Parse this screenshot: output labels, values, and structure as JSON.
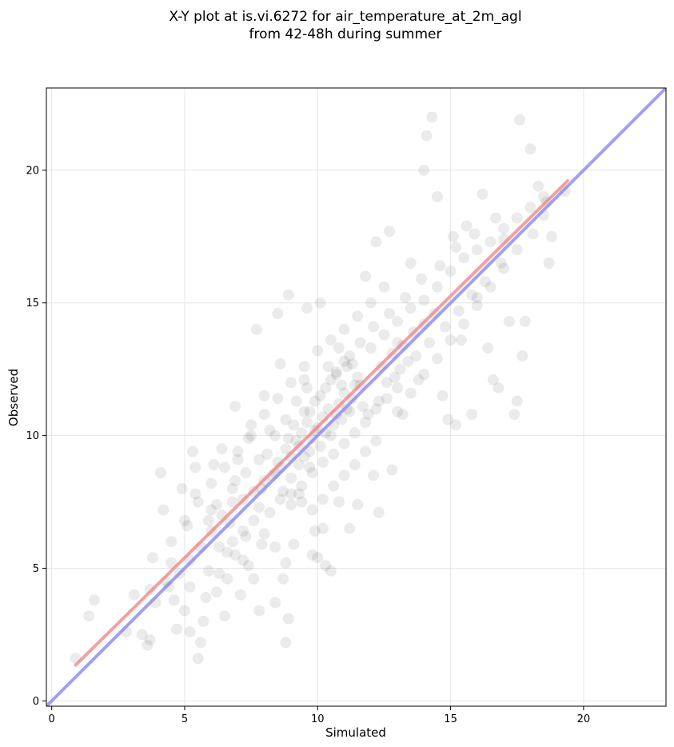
{
  "chart_data": {
    "type": "scatter",
    "title_line1": "X-Y plot at is.vi.6272 for air_temperature_at_2m_agl",
    "title_line2": "from 42-48h during summer",
    "xlabel": "Simulated",
    "ylabel": "Observed",
    "xlim": [
      -0.2,
      23.1
    ],
    "ylim": [
      -0.2,
      23.1
    ],
    "xticks": [
      0,
      5,
      10,
      15,
      20
    ],
    "yticks": [
      0,
      5,
      10,
      15,
      20
    ],
    "xtick_labels": [
      "0",
      "5",
      "10",
      "15",
      "20"
    ],
    "ytick_labels": [
      "0",
      "5",
      "10",
      "15",
      "20"
    ],
    "grid": true,
    "point_color": "#000000",
    "point_alpha": 0.08,
    "regression_line": {
      "color": "#f08080",
      "x": [
        0.9,
        19.4
      ],
      "y": [
        1.35,
        19.6
      ]
    },
    "one_to_one_line": {
      "color": "#8080f0",
      "x": [
        -0.2,
        23.1
      ],
      "y": [
        -0.2,
        23.1
      ]
    },
    "points": [
      [
        0.9,
        1.6
      ],
      [
        1.4,
        3.2
      ],
      [
        1.6,
        3.8
      ],
      [
        2.8,
        2.6
      ],
      [
        3.1,
        4.0
      ],
      [
        3.4,
        2.5
      ],
      [
        3.6,
        2.1
      ],
      [
        3.7,
        2.3
      ],
      [
        3.7,
        4.2
      ],
      [
        3.8,
        5.4
      ],
      [
        3.9,
        3.7
      ],
      [
        4.1,
        8.6
      ],
      [
        4.2,
        7.2
      ],
      [
        4.3,
        4.5
      ],
      [
        4.4,
        4.3
      ],
      [
        4.5,
        5.2
      ],
      [
        4.6,
        3.8
      ],
      [
        4.7,
        2.7
      ],
      [
        4.9,
        8.0
      ],
      [
        5.0,
        3.4
      ],
      [
        5.1,
        6.6
      ],
      [
        5.2,
        2.6
      ],
      [
        5.2,
        4.3
      ],
      [
        5.3,
        9.4
      ],
      [
        5.4,
        7.8
      ],
      [
        5.4,
        8.8
      ],
      [
        5.5,
        1.6
      ],
      [
        5.6,
        2.2
      ],
      [
        5.7,
        3.0
      ],
      [
        5.8,
        3.9
      ],
      [
        5.9,
        4.9
      ],
      [
        5.9,
        6.8
      ],
      [
        6.0,
        7.2
      ],
      [
        6.1,
        8.9
      ],
      [
        6.2,
        4.1
      ],
      [
        6.3,
        5.8
      ],
      [
        6.4,
        9.5
      ],
      [
        6.5,
        3.2
      ],
      [
        6.6,
        4.6
      ],
      [
        6.6,
        5.6
      ],
      [
        6.7,
        6.7
      ],
      [
        6.8,
        7.5
      ],
      [
        6.9,
        8.3
      ],
      [
        6.9,
        11.1
      ],
      [
        7.0,
        9.1
      ],
      [
        7.1,
        4.0
      ],
      [
        7.2,
        5.3
      ],
      [
        7.3,
        6.2
      ],
      [
        7.4,
        9.9
      ],
      [
        7.5,
        10.4
      ],
      [
        7.6,
        4.6
      ],
      [
        7.7,
        14.0
      ],
      [
        7.8,
        3.4
      ],
      [
        7.9,
        8.0
      ],
      [
        8.0,
        11.5
      ],
      [
        8.1,
        9.3
      ],
      [
        8.2,
        10.2
      ],
      [
        8.4,
        3.7
      ],
      [
        8.5,
        14.6
      ],
      [
        8.6,
        12.7
      ],
      [
        8.7,
        4.6
      ],
      [
        8.8,
        2.2
      ],
      [
        8.8,
        5.2
      ],
      [
        8.9,
        3.1
      ],
      [
        8.9,
        15.3
      ],
      [
        9.0,
        7.4
      ],
      [
        9.1,
        5.9
      ],
      [
        9.3,
        7.8
      ],
      [
        9.5,
        12.1
      ],
      [
        9.6,
        14.8
      ],
      [
        9.8,
        5.5
      ],
      [
        9.9,
        6.4
      ],
      [
        10.0,
        5.4
      ],
      [
        10.1,
        15.0
      ],
      [
        10.2,
        6.5
      ],
      [
        10.3,
        5.1
      ],
      [
        10.5,
        4.9
      ],
      [
        10.7,
        12.4
      ],
      [
        10.8,
        7.5
      ],
      [
        11.0,
        12.8
      ],
      [
        11.2,
        6.5
      ],
      [
        11.4,
        11.9
      ],
      [
        11.5,
        7.4
      ],
      [
        11.8,
        16.0
      ],
      [
        12.1,
        8.5
      ],
      [
        12.2,
        17.3
      ],
      [
        12.3,
        7.1
      ],
      [
        12.7,
        17.7
      ],
      [
        12.8,
        8.7
      ],
      [
        13.0,
        13.5
      ],
      [
        13.2,
        10.8
      ],
      [
        13.5,
        16.5
      ],
      [
        13.8,
        12.1
      ],
      [
        14.0,
        20.0
      ],
      [
        14.1,
        21.3
      ],
      [
        14.3,
        22.0
      ],
      [
        14.5,
        19.0
      ],
      [
        14.7,
        11.5
      ],
      [
        14.9,
        10.6
      ],
      [
        15.1,
        17.5
      ],
      [
        15.2,
        10.4
      ],
      [
        15.4,
        13.6
      ],
      [
        15.6,
        17.9
      ],
      [
        15.8,
        10.8
      ],
      [
        16.0,
        15.2
      ],
      [
        16.2,
        19.1
      ],
      [
        16.4,
        13.3
      ],
      [
        16.6,
        12.1
      ],
      [
        16.8,
        11.8
      ],
      [
        17.0,
        17.4
      ],
      [
        17.2,
        14.3
      ],
      [
        17.4,
        10.8
      ],
      [
        17.5,
        11.3
      ],
      [
        17.6,
        21.9
      ],
      [
        17.7,
        13.0
      ],
      [
        17.8,
        14.3
      ],
      [
        18.0,
        20.8
      ],
      [
        18.3,
        19.4
      ],
      [
        18.5,
        18.3
      ],
      [
        18.7,
        16.5
      ],
      [
        18.8,
        17.5
      ],
      [
        19.3,
        19.2
      ],
      [
        9.2,
        9.8
      ],
      [
        9.4,
        10.1
      ],
      [
        9.6,
        10.5
      ],
      [
        9.8,
        9.9
      ],
      [
        10.0,
        10.3
      ],
      [
        10.2,
        10.7
      ],
      [
        10.4,
        11.0
      ],
      [
        10.6,
        10.4
      ],
      [
        10.8,
        11.2
      ],
      [
        11.0,
        11.6
      ],
      [
        11.2,
        10.9
      ],
      [
        9.0,
        9.2
      ],
      [
        9.3,
        8.9
      ],
      [
        9.7,
        9.4
      ],
      [
        10.1,
        9.6
      ],
      [
        10.5,
        10.0
      ],
      [
        10.9,
        10.6
      ],
      [
        11.3,
        11.4
      ],
      [
        11.6,
        11.9
      ],
      [
        8.6,
        8.8
      ],
      [
        8.8,
        9.5
      ],
      [
        9.1,
        10.4
      ],
      [
        9.5,
        10.9
      ],
      [
        9.9,
        11.3
      ],
      [
        10.3,
        11.8
      ],
      [
        10.7,
        12.3
      ],
      [
        11.1,
        12.6
      ],
      [
        11.5,
        12.2
      ],
      [
        8.3,
        8.5
      ],
      [
        8.5,
        9.0
      ],
      [
        8.7,
        7.9
      ],
      [
        9.0,
        8.4
      ],
      [
        9.4,
        8.1
      ],
      [
        9.8,
        8.6
      ],
      [
        10.2,
        9.0
      ],
      [
        10.6,
        9.3
      ],
      [
        11.0,
        9.7
      ],
      [
        11.4,
        10.1
      ],
      [
        11.8,
        10.5
      ],
      [
        12.2,
        11.0
      ],
      [
        12.6,
        11.4
      ],
      [
        13.0,
        11.8
      ],
      [
        12.4,
        12.6
      ],
      [
        12.8,
        13.1
      ],
      [
        13.2,
        13.4
      ],
      [
        13.6,
        13.9
      ],
      [
        14.0,
        14.2
      ],
      [
        14.4,
        14.6
      ],
      [
        12.0,
        13.3
      ],
      [
        12.5,
        13.8
      ],
      [
        13.0,
        14.3
      ],
      [
        13.5,
        14.8
      ],
      [
        14.0,
        15.1
      ],
      [
        14.5,
        15.6
      ],
      [
        15.0,
        16.2
      ],
      [
        15.5,
        16.7
      ],
      [
        16.0,
        17.0
      ],
      [
        16.5,
        17.3
      ],
      [
        17.0,
        17.8
      ],
      [
        17.5,
        18.2
      ],
      [
        18.0,
        18.6
      ],
      [
        18.5,
        19.0
      ],
      [
        11.5,
        14.5
      ],
      [
        12.0,
        15.0
      ],
      [
        12.5,
        15.6
      ],
      [
        11.0,
        14.0
      ],
      [
        10.5,
        13.6
      ],
      [
        10.0,
        13.2
      ],
      [
        9.5,
        12.6
      ],
      [
        9.0,
        12.0
      ],
      [
        8.5,
        11.4
      ],
      [
        8.0,
        10.8
      ],
      [
        7.5,
        10.0
      ],
      [
        7.0,
        9.4
      ],
      [
        6.5,
        8.8
      ],
      [
        6.0,
        8.2
      ],
      [
        5.5,
        7.5
      ],
      [
        5.0,
        6.8
      ],
      [
        4.5,
        6.0
      ],
      [
        13.0,
        10.9
      ],
      [
        13.5,
        11.6
      ],
      [
        14.0,
        12.3
      ],
      [
        14.5,
        12.9
      ],
      [
        15.0,
        13.6
      ],
      [
        15.5,
        14.2
      ],
      [
        16.0,
        14.9
      ],
      [
        16.5,
        15.6
      ],
      [
        17.0,
        16.3
      ],
      [
        7.2,
        7.6
      ],
      [
        7.6,
        7.9
      ],
      [
        8.0,
        8.3
      ],
      [
        8.4,
        8.6
      ],
      [
        7.8,
        7.3
      ],
      [
        8.2,
        7.1
      ],
      [
        8.6,
        7.6
      ],
      [
        9.0,
        7.8
      ],
      [
        9.4,
        7.5
      ],
      [
        9.8,
        7.2
      ],
      [
        10.2,
        7.6
      ],
      [
        10.6,
        8.1
      ],
      [
        11.0,
        8.5
      ],
      [
        11.4,
        8.9
      ],
      [
        11.8,
        9.4
      ],
      [
        12.2,
        9.8
      ],
      [
        6.8,
        6.0
      ],
      [
        7.2,
        6.4
      ],
      [
        7.6,
        6.8
      ],
      [
        8.0,
        6.3
      ],
      [
        8.4,
        5.8
      ],
      [
        6.4,
        7.0
      ],
      [
        6.0,
        6.4
      ],
      [
        5.6,
        5.8
      ],
      [
        5.2,
        5.3
      ],
      [
        4.8,
        4.8
      ],
      [
        6.3,
        4.8
      ],
      [
        6.9,
        5.5
      ],
      [
        7.4,
        5.1
      ],
      [
        7.9,
        5.9
      ],
      [
        11.2,
        13.0
      ],
      [
        11.6,
        13.5
      ],
      [
        12.1,
        14.1
      ],
      [
        12.7,
        14.6
      ],
      [
        13.3,
        15.2
      ],
      [
        13.9,
        15.9
      ],
      [
        14.6,
        16.4
      ],
      [
        15.2,
        17.1
      ],
      [
        15.9,
        17.6
      ],
      [
        16.7,
        18.2
      ],
      [
        10.4,
        12.6
      ],
      [
        10.8,
        13.3
      ],
      [
        9.6,
        11.8
      ],
      [
        9.2,
        11.3
      ],
      [
        8.8,
        10.6
      ],
      [
        8.4,
        10.0
      ],
      [
        7.8,
        9.1
      ],
      [
        7.3,
        8.6
      ],
      [
        6.8,
        8.0
      ],
      [
        6.2,
        7.4
      ],
      [
        12.6,
        12.0
      ],
      [
        13.1,
        12.5
      ],
      [
        13.7,
        13.0
      ],
      [
        14.2,
        13.5
      ],
      [
        14.8,
        14.1
      ],
      [
        15.3,
        14.7
      ],
      [
        15.8,
        15.3
      ],
      [
        16.3,
        15.8
      ],
      [
        16.9,
        16.5
      ],
      [
        17.5,
        17.0
      ],
      [
        18.1,
        17.6
      ],
      [
        18.6,
        18.8
      ],
      [
        11.9,
        10.8
      ],
      [
        12.3,
        11.3
      ],
      [
        12.9,
        12.2
      ],
      [
        13.4,
        12.8
      ],
      [
        9.7,
        10.9
      ],
      [
        10.1,
        11.5
      ],
      [
        10.5,
        12.1
      ],
      [
        11.3,
        12.7
      ],
      [
        9.3,
        9.6
      ],
      [
        9.9,
        10.2
      ],
      [
        10.3,
        10.1
      ],
      [
        10.7,
        10.8
      ],
      [
        11.1,
        11.0
      ],
      [
        9.5,
        9.2
      ],
      [
        10.9,
        11.9
      ],
      [
        11.7,
        11.1
      ],
      [
        8.9,
        9.9
      ],
      [
        9.7,
        8.8
      ]
    ]
  }
}
